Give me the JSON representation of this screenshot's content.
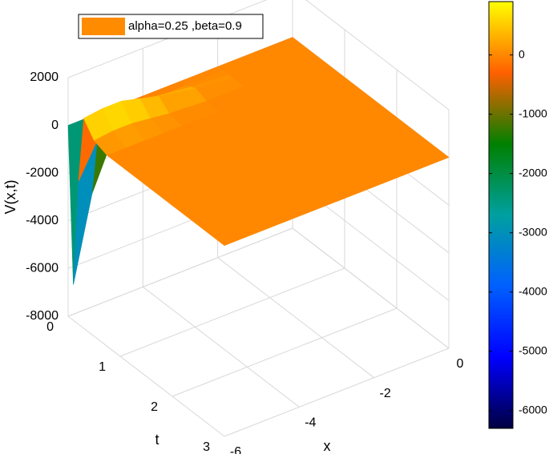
{
  "chart_data": {
    "type": "surface",
    "xlabel": "x",
    "ylabel": "t",
    "zlabel": "V(x,t)",
    "x": [
      -6,
      -5.5,
      -5,
      -4.5,
      -4,
      -3,
      -2,
      -1,
      0
    ],
    "y": [
      0,
      0.1,
      0.2,
      0.3,
      0.5,
      0.75,
      1,
      2,
      3
    ],
    "z": [
      [
        0,
        0,
        0,
        0,
        0,
        0,
        0,
        0,
        0
      ],
      [
        -6500,
        -3000,
        -1200,
        -400,
        -100,
        0,
        0,
        0,
        0
      ],
      [
        -2000,
        -600,
        -100,
        200,
        300,
        100,
        0,
        0,
        0
      ],
      [
        800,
        900,
        900,
        700,
        500,
        200,
        0,
        0,
        0
      ],
      [
        200,
        300,
        300,
        200,
        100,
        0,
        0,
        0,
        0
      ],
      [
        0,
        0,
        0,
        0,
        0,
        0,
        0,
        0,
        0
      ],
      [
        0,
        0,
        0,
        0,
        0,
        0,
        0,
        0,
        0
      ],
      [
        0,
        0,
        0,
        0,
        0,
        0,
        0,
        0,
        0
      ],
      [
        0,
        0,
        0,
        0,
        0,
        0,
        0,
        0,
        0
      ]
    ],
    "xlim": [
      -6,
      0
    ],
    "ylim": [
      0,
      3
    ],
    "zlim": [
      -8000,
      2000
    ],
    "xticks": [
      -6,
      -4,
      -2,
      0
    ],
    "yticks": [
      0,
      1,
      2,
      3
    ],
    "zticks": [
      -8000,
      -6000,
      -4000,
      -2000,
      0,
      2000
    ],
    "grid": true,
    "legend": {
      "name": "alpha=0.25 ,beta=0.9",
      "color": "#ff8c00",
      "position": "top"
    },
    "colormap": [
      "#000040",
      "#0000ff",
      "#0060ff",
      "#00a0a0",
      "#008000",
      "#ff6000",
      "#ffff00"
    ],
    "colorbar": {
      "clim": [
        -6300,
        900
      ],
      "ticks": [
        -6000,
        -5000,
        -4000,
        -3000,
        -2000,
        -1000,
        0
      ]
    }
  }
}
